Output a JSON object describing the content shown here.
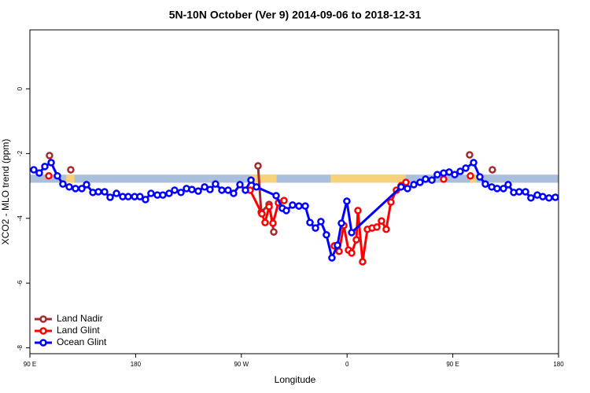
{
  "chart_data": {
    "type": "line",
    "title": "5N-10N October (Ver 9)   2014-09-06 to 2018-12-31",
    "x_label": "Longitude",
    "y_label": "XCO2 - MLO trend (ppm)",
    "xlim": [
      90,
      540
    ],
    "xticks": [
      {
        "value": 90,
        "label": "90 E"
      },
      180,
      {
        "value": 270,
        "label": "90 W"
      },
      {
        "value": 360,
        "label": "0"
      },
      {
        "value": 450,
        "label": "90 E"
      },
      {
        "value": 540,
        "label": "180"
      }
    ],
    "ylim": [
      -8.18,
      1.82
    ],
    "yticks": [
      0,
      -2,
      -4,
      -6,
      -8
    ],
    "legend": "lower left",
    "band": {
      "ylim": [
        -2.9,
        -2.65
      ],
      "color": "#a9bfdc",
      "land_color": "#f8d27a",
      "land": [
        [
          121,
          128
        ],
        [
          277,
          300
        ],
        [
          346,
          410
        ],
        [
          465,
          470
        ]
      ]
    },
    "series": [
      {
        "name": "Land Nadir",
        "color": "#a52a2a",
        "x": [
          106.7,
          null,
          124.8,
          null,
          284.2,
          286.9,
          293.6,
          297.6,
          null,
          464.3,
          null,
          483.7
        ],
        "values": [
          -2.06,
          null,
          -2.5,
          null,
          -2.38,
          -3.81,
          -3.57,
          -4.42,
          null,
          -2.04,
          null,
          -2.5
        ]
      },
      {
        "name": "Land Glint",
        "color": "#ff0000",
        "x": [
          106.1,
          null,
          277.5,
          287.5,
          290.2,
          293.6,
          296.9,
          301.6,
          306.3,
          null,
          349.1,
          353.2,
          357.2,
          361.2,
          363.9,
          367.9,
          369.2,
          373.2,
          377.3,
          381.3,
          385.3,
          389.3,
          393.3,
          397.3,
          402.0,
          406.0,
          410.1,
          null,
          442.2,
          null,
          465.0
        ],
        "values": [
          -2.69,
          null,
          -3.13,
          -3.86,
          -4.13,
          -3.64,
          -4.15,
          -3.52,
          -3.45,
          null,
          -4.85,
          -5.02,
          -4.22,
          -4.98,
          -5.07,
          -4.66,
          -3.76,
          -5.34,
          -4.34,
          -4.3,
          -4.27,
          -4.08,
          -4.34,
          -3.5,
          -3.13,
          -2.99,
          -2.89,
          null,
          -2.79,
          null,
          -2.69
        ]
      },
      {
        "name": "Ocean Glint",
        "color": "#0000ff",
        "x": [
          93.3,
          98.0,
          102.7,
          108.1,
          113.4,
          118.1,
          123.5,
          128.8,
          134.2,
          138.2,
          143.6,
          148.3,
          153.6,
          158.3,
          163.7,
          169.0,
          173.7,
          179.1,
          183.7,
          188.4,
          193.1,
          198.5,
          203.2,
          208.5,
          213.2,
          218.6,
          223.3,
          227.9,
          233.3,
          238.7,
          243.3,
          248.0,
          253.4,
          258.7,
          263.4,
          268.8,
          273.5,
          278.2,
          282.8,
          299.6,
          304.9,
          308.3,
          313.6,
          319.0,
          324.4,
          328.4,
          333.1,
          337.7,
          342.4,
          347.1,
          351.8,
          355.2,
          359.8,
          363.9,
          406.0,
          411.4,
          416.8,
          422.1,
          426.8,
          432.2,
          436.8,
          442.2,
          446.9,
          451.6,
          456.3,
          461.0,
          467.7,
          473.0,
          477.7,
          483.1,
          487.7,
          493.1,
          497.1,
          501.8,
          506.5,
          511.9,
          516.5,
          521.9,
          526.6,
          531.9,
          537.3
        ],
        "values": [
          -2.5,
          -2.6,
          -2.4,
          -2.28,
          -2.69,
          -2.94,
          -3.03,
          -3.08,
          -3.08,
          -2.96,
          -3.2,
          -3.18,
          -3.18,
          -3.35,
          -3.23,
          -3.33,
          -3.33,
          -3.33,
          -3.33,
          -3.42,
          -3.23,
          -3.28,
          -3.28,
          -3.23,
          -3.13,
          -3.2,
          -3.08,
          -3.11,
          -3.16,
          -3.03,
          -3.11,
          -2.94,
          -3.13,
          -3.13,
          -3.23,
          -2.96,
          -3.13,
          -2.82,
          -3.03,
          -3.3,
          -3.69,
          -3.76,
          -3.59,
          -3.62,
          -3.62,
          -4.13,
          -4.3,
          -4.1,
          -4.51,
          -5.22,
          -4.83,
          -4.15,
          -3.47,
          -4.44,
          -3.03,
          -3.08,
          -2.96,
          -2.89,
          -2.79,
          -2.82,
          -2.65,
          -2.6,
          -2.57,
          -2.65,
          -2.55,
          -2.45,
          -2.28,
          -2.72,
          -2.94,
          -3.03,
          -3.08,
          -3.08,
          -2.96,
          -3.2,
          -3.18,
          -3.18,
          -3.37,
          -3.28,
          -3.33,
          -3.37,
          -3.35
        ]
      }
    ]
  }
}
